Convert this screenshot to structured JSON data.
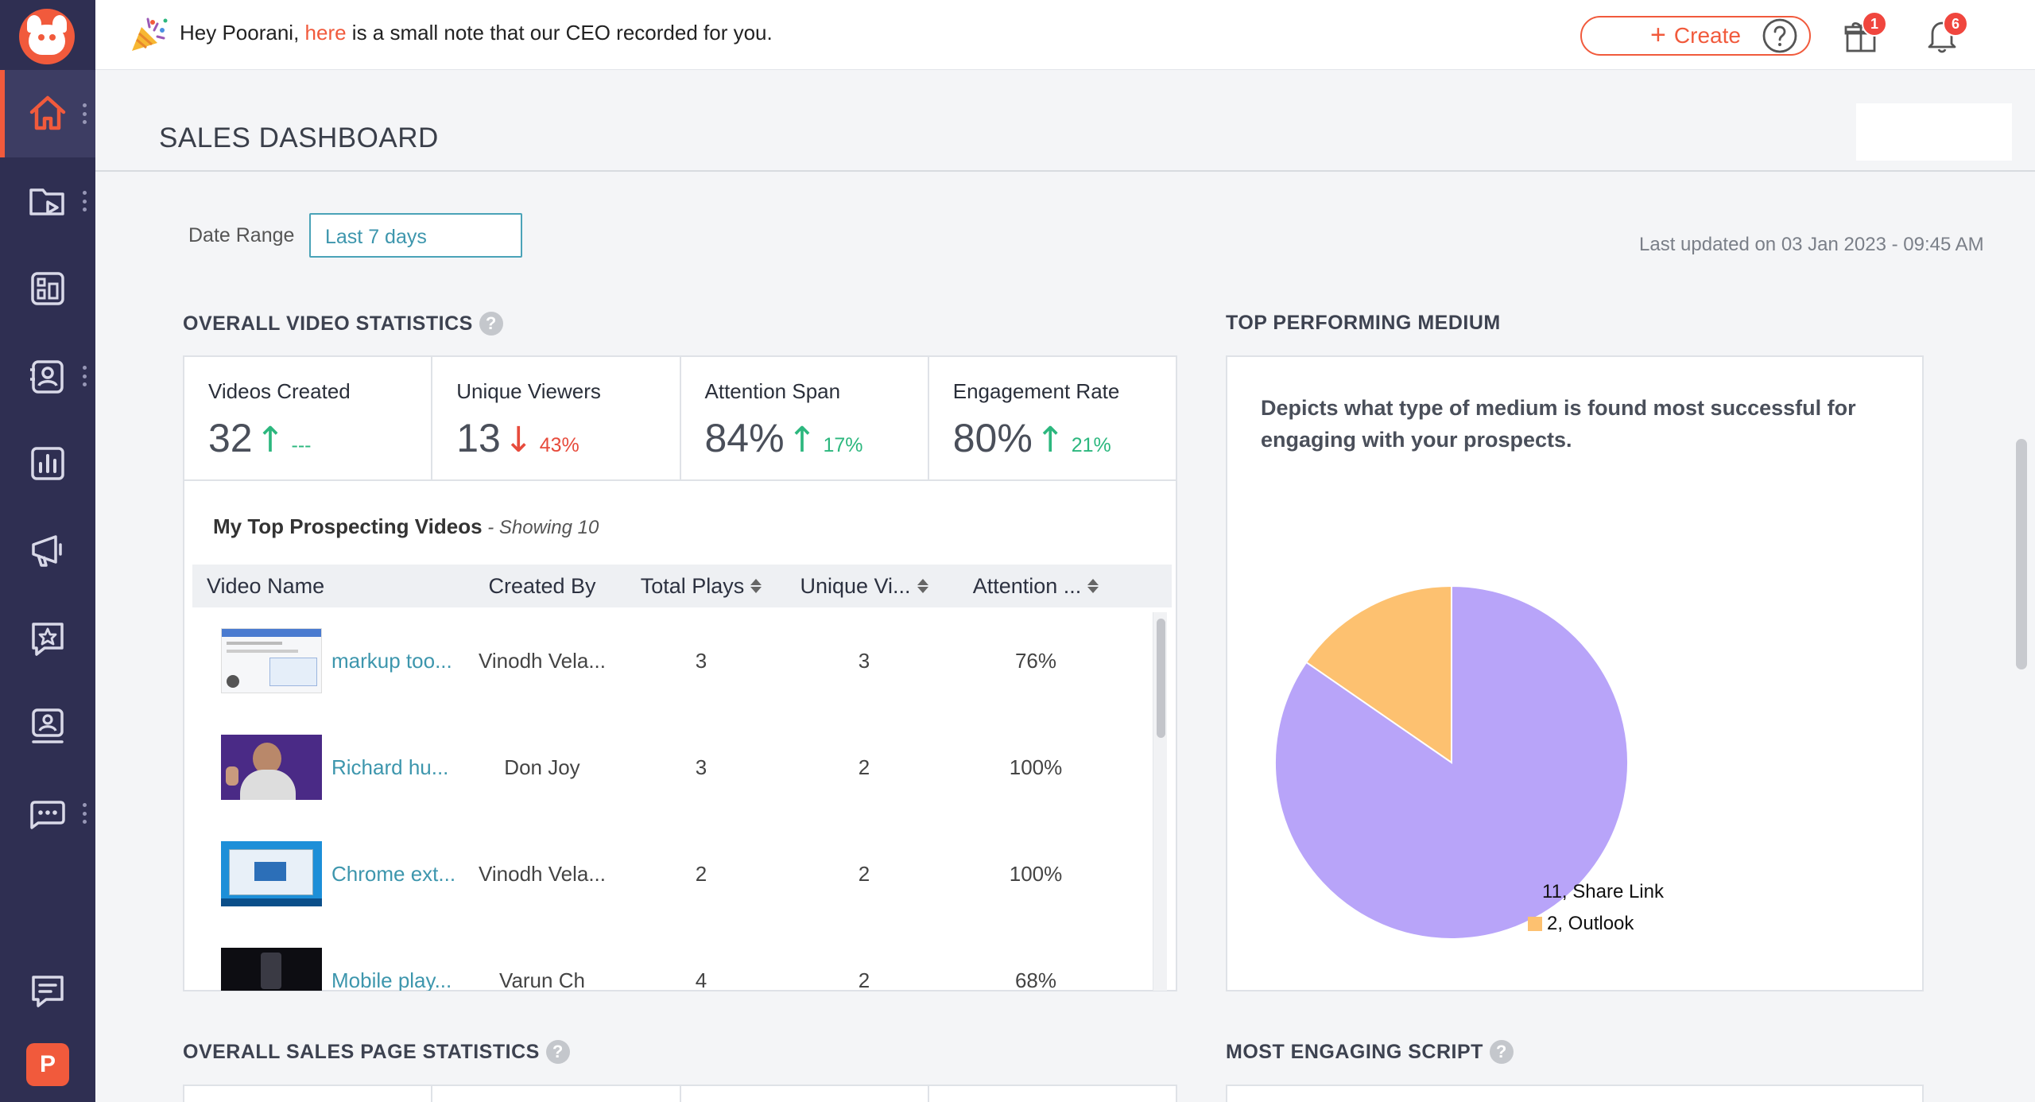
{
  "topbar": {
    "note_prefix": "Hey Poorani, ",
    "note_link": "here",
    "note_suffix": " is a small note that our CEO recorded for you.",
    "create_label": "Create",
    "gifts_badge": "1",
    "notifications_badge": "6"
  },
  "sidebar": {
    "items": [
      "home-icon",
      "video-folder-icon",
      "dashboard-icon",
      "contacts-icon",
      "reports-icon",
      "campaign-icon",
      "reviews-icon",
      "presenter-icon",
      "chat-icon"
    ],
    "avatar_letter": "P"
  },
  "page": {
    "title": "SALES DASHBOARD",
    "date_range_label": "Date Range",
    "date_range_value": "Last 7 days",
    "last_updated": "Last updated on 03 Jan 2023 - 09:45 AM"
  },
  "video_stats": {
    "title": "OVERALL VIDEO STATISTICS",
    "stats": [
      {
        "label": "Videos Created",
        "value": "32",
        "direction": "up",
        "delta": "---"
      },
      {
        "label": "Unique Viewers",
        "value": "13",
        "direction": "down",
        "delta": "43%"
      },
      {
        "label": "Attention Span",
        "value": "84%",
        "direction": "up",
        "delta": "17%"
      },
      {
        "label": "Engagement Rate",
        "value": "80%",
        "direction": "up",
        "delta": "21%"
      }
    ],
    "top_videos_title": "My Top Prospecting Videos",
    "top_videos_showing": " - Showing 10",
    "columns": [
      "Video Name",
      "Created By",
      "Total Plays",
      "Unique Vi...",
      "Attention ..."
    ],
    "rows": [
      {
        "name": "markup too...",
        "created_by": "Vinodh Vela...",
        "plays": "3",
        "unique": "3",
        "attention": "76%",
        "thumb": "screenshot"
      },
      {
        "name": "Richard hu...",
        "created_by": "Don Joy",
        "plays": "3",
        "unique": "2",
        "attention": "100%",
        "thumb": "person"
      },
      {
        "name": "Chrome ext...",
        "created_by": "Vinodh Vela...",
        "plays": "2",
        "unique": "2",
        "attention": "100%",
        "thumb": "desktop"
      },
      {
        "name": "Mobile play...",
        "created_by": "Varun Ch",
        "plays": "4",
        "unique": "2",
        "attention": "68%",
        "thumb": "mobile"
      }
    ]
  },
  "medium": {
    "title": "TOP PERFORMING MEDIUM",
    "description": "Depicts what type of medium is found most successful for engaging with your prospects.",
    "colors": {
      "share_link": "#b8a4f9",
      "outlook": "#fdc170"
    },
    "label_share": "11, Share Link",
    "label_outlook": "2, Outlook"
  },
  "chart_data": {
    "type": "pie",
    "categories": [
      "Share Link",
      "Outlook"
    ],
    "values": [
      11,
      2
    ],
    "colors": [
      "#b8a4f9",
      "#fdc170"
    ],
    "legend": "center-right"
  },
  "sales_stats": {
    "title": "OVERALL SALES PAGE STATISTICS"
  },
  "script": {
    "title": "MOST ENGAGING SCRIPT"
  }
}
